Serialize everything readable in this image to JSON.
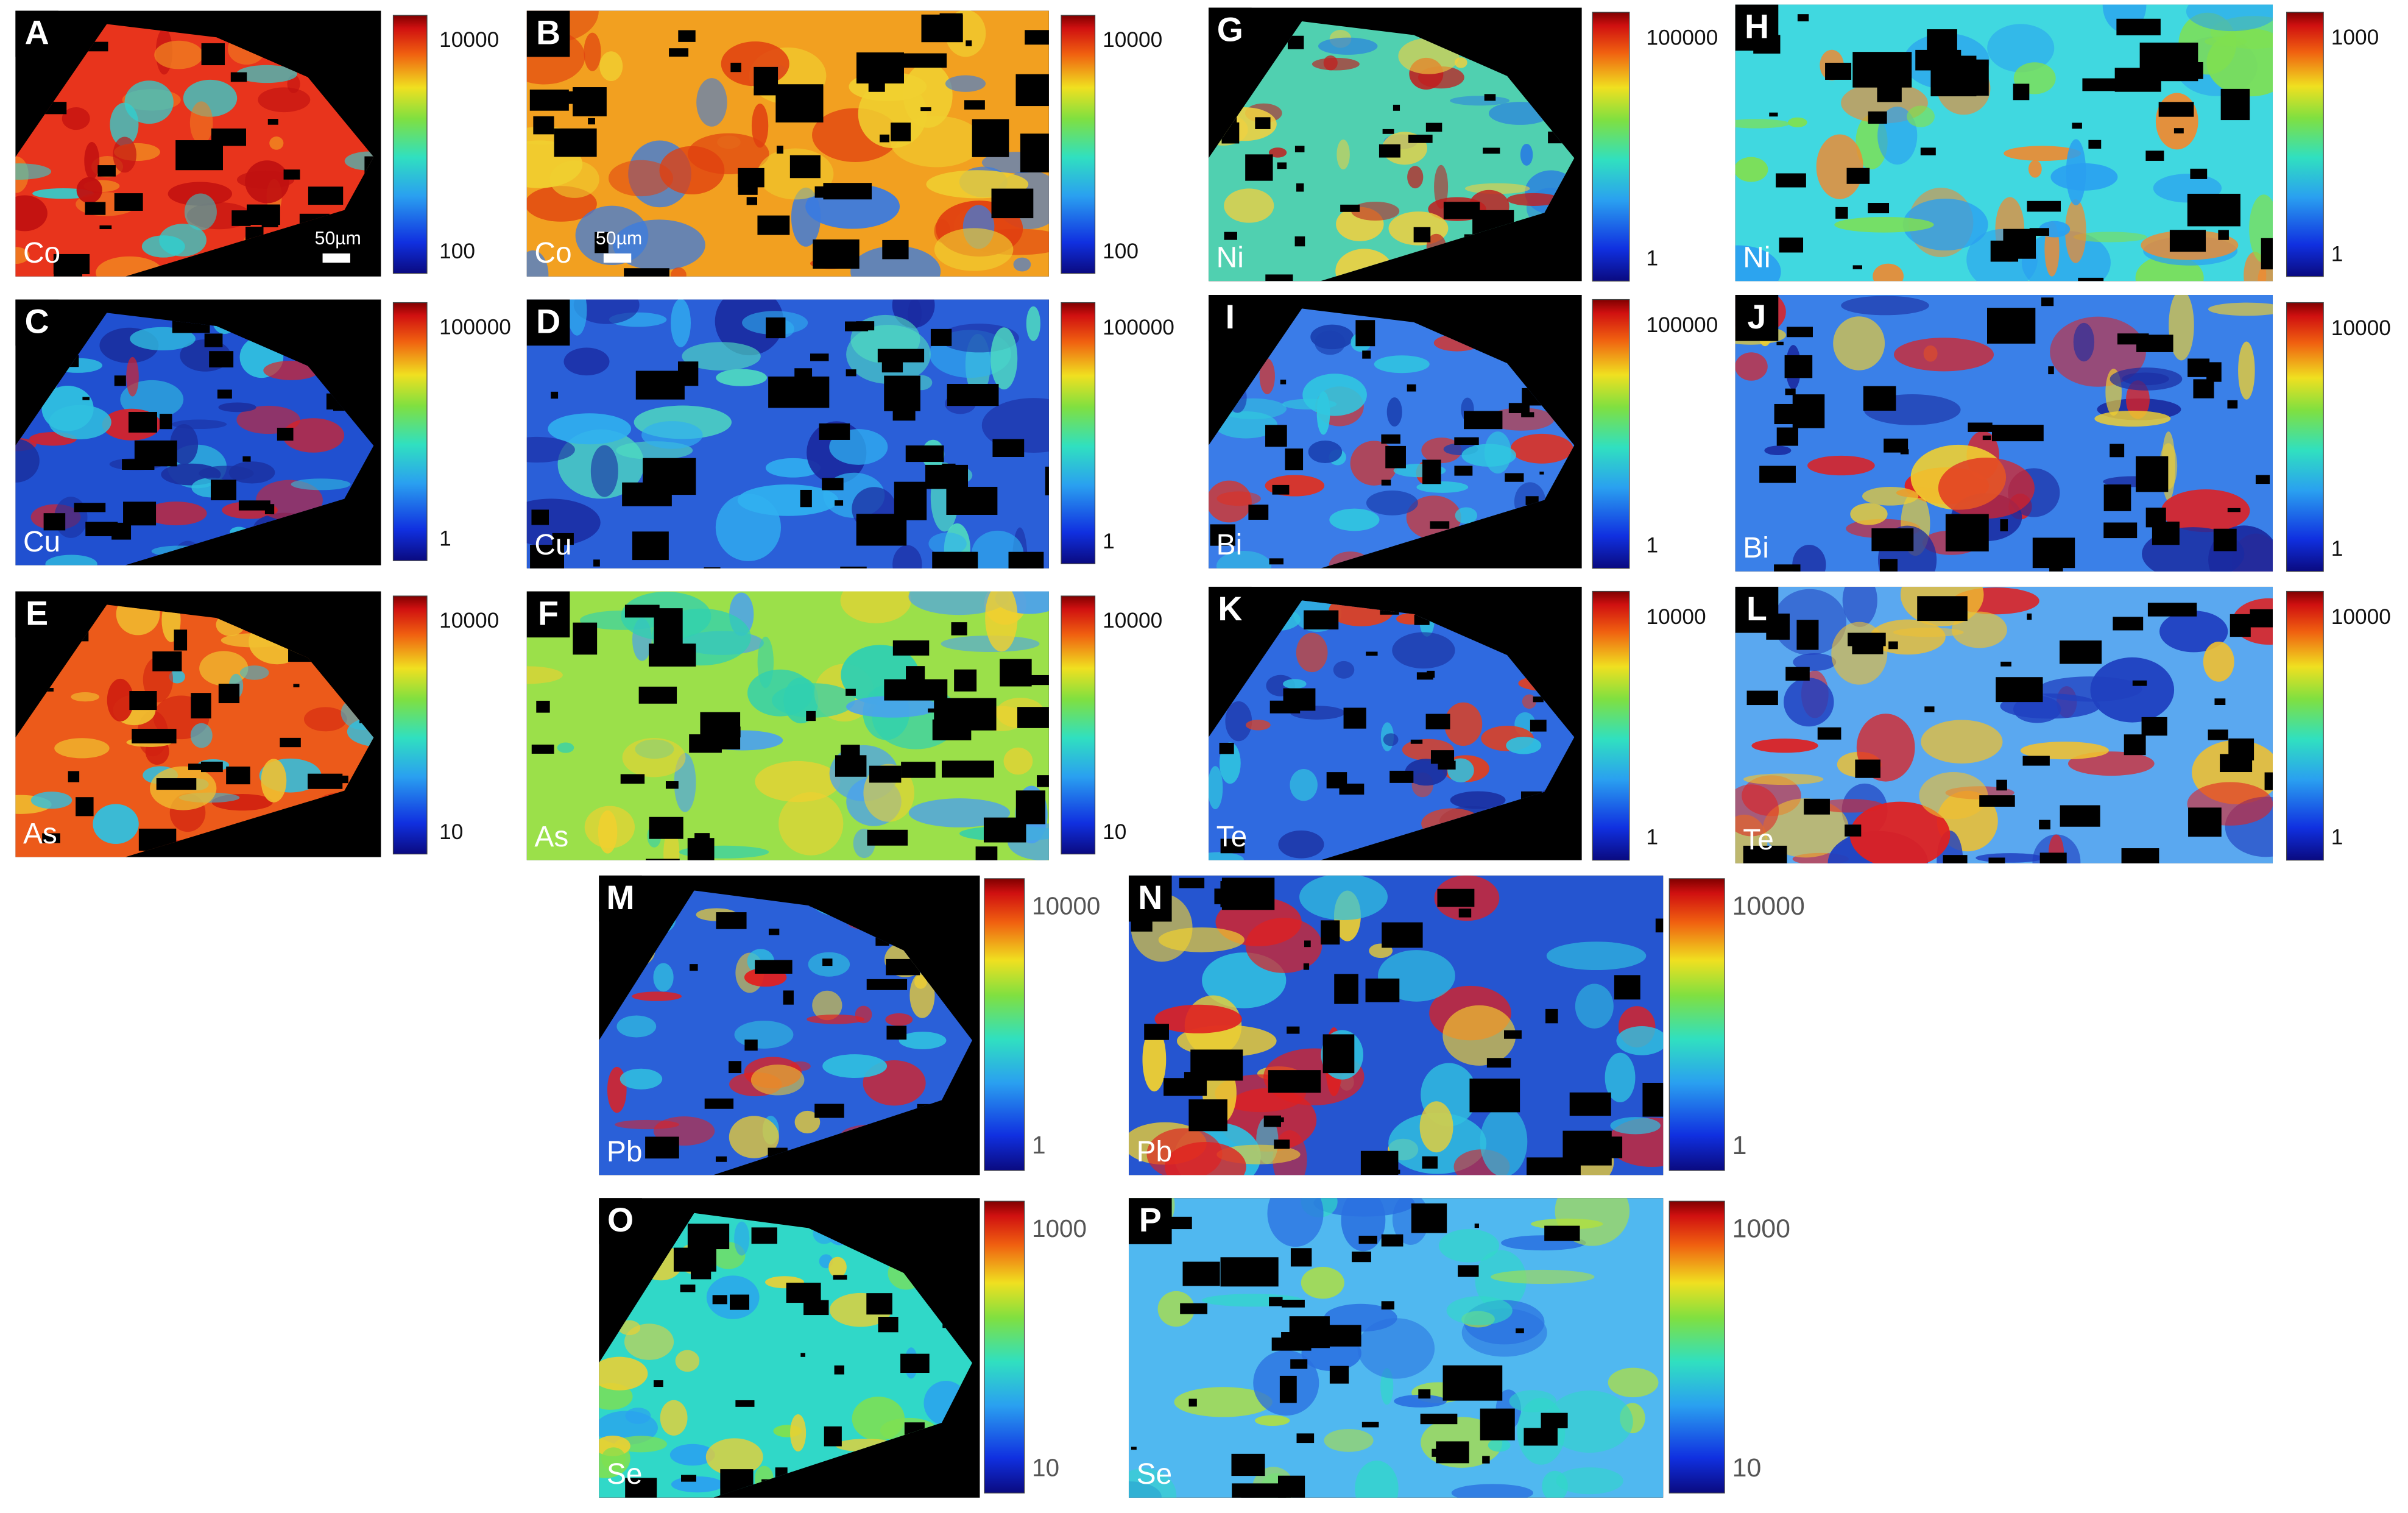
{
  "panels": [
    {
      "letter": "A",
      "element": "Co",
      "colorbar_labels": [
        "10000",
        "100"
      ],
      "scale_bar": "50µm"
    },
    {
      "letter": "B",
      "element": "Co",
      "colorbar_labels": [
        "10000",
        "100"
      ],
      "scale_bar": "50µm"
    },
    {
      "letter": "G",
      "element": "Ni",
      "colorbar_labels": [
        "100000",
        "1"
      ]
    },
    {
      "letter": "H",
      "element": "Ni",
      "colorbar_labels": [
        "1000",
        "1"
      ]
    },
    {
      "letter": "C",
      "element": "Cu",
      "colorbar_labels": [
        "100000",
        "1"
      ]
    },
    {
      "letter": "D",
      "element": "Cu",
      "colorbar_labels": [
        "100000",
        "1"
      ]
    },
    {
      "letter": "I",
      "element": "Bi",
      "colorbar_labels": [
        "100000",
        "1"
      ]
    },
    {
      "letter": "J",
      "element": "Bi",
      "colorbar_labels": [
        "10000",
        "1"
      ]
    },
    {
      "letter": "E",
      "element": "As",
      "colorbar_labels": [
        "10000",
        "10"
      ]
    },
    {
      "letter": "F",
      "element": "As",
      "colorbar_labels": [
        "10000",
        "10"
      ]
    },
    {
      "letter": "K",
      "element": "Te",
      "colorbar_labels": [
        "10000",
        "1"
      ]
    },
    {
      "letter": "L",
      "element": "Te",
      "colorbar_labels": [
        "10000",
        "1"
      ]
    },
    {
      "letter": "M",
      "element": "Pb",
      "colorbar_labels": [
        "10000",
        "1"
      ]
    },
    {
      "letter": "N",
      "element": "Pb",
      "colorbar_labels": [
        "10000",
        "1"
      ]
    },
    {
      "letter": "O",
      "element": "Se",
      "colorbar_labels": [
        "1000",
        "10"
      ]
    },
    {
      "letter": "P",
      "element": "Se",
      "colorbar_labels": [
        "1000",
        "10"
      ]
    }
  ]
}
